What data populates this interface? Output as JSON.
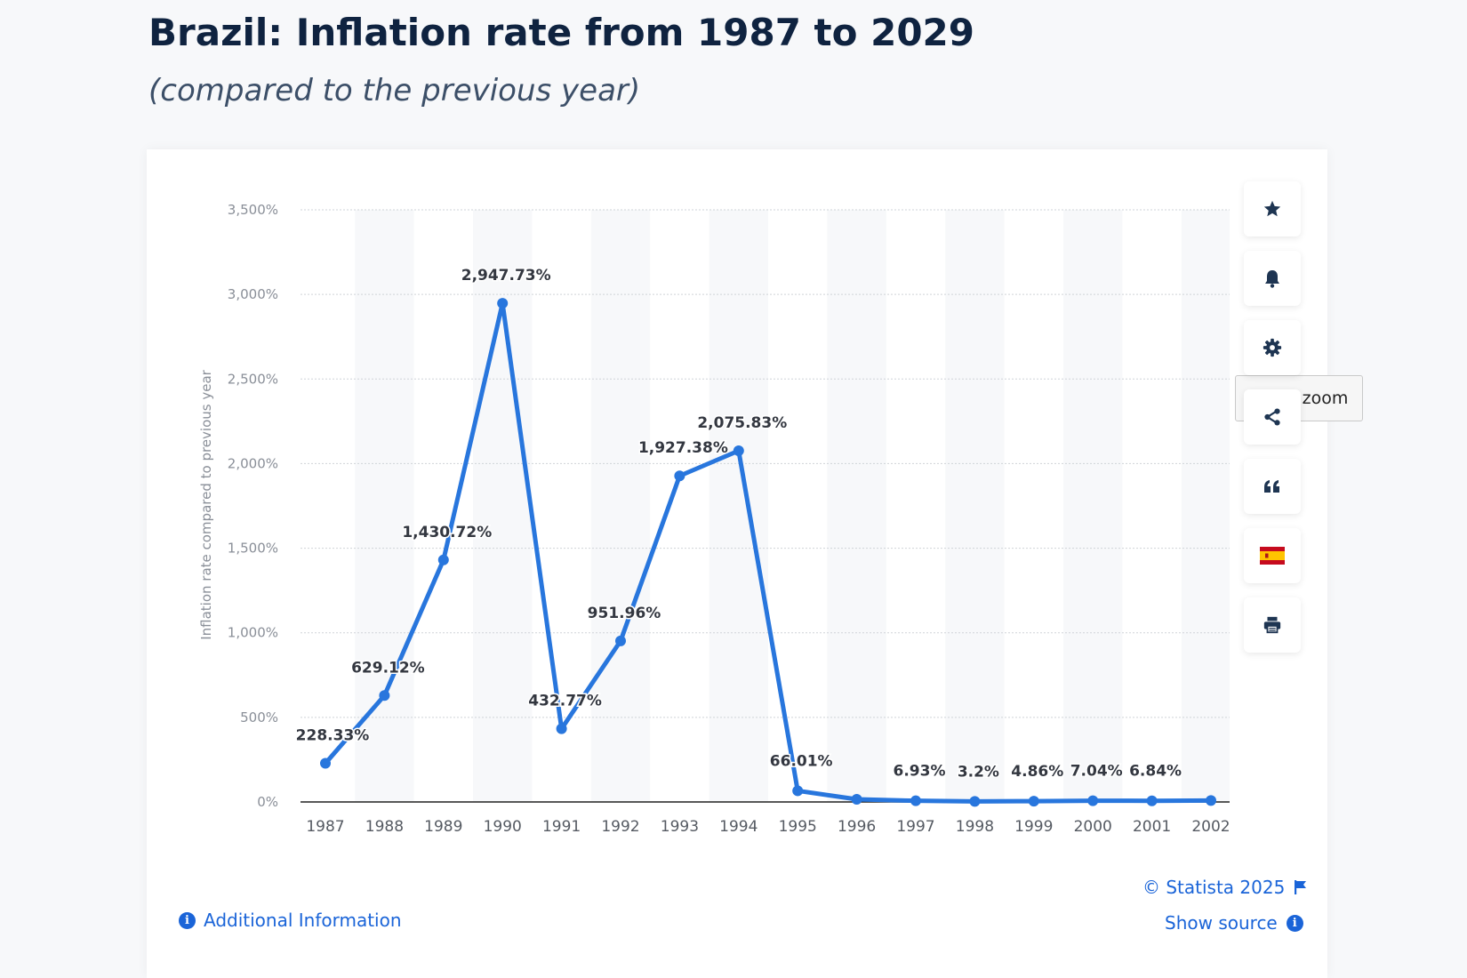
{
  "header": {
    "title": "Brazil: Inflation rate from 1987 to 2029",
    "subtitle": "(compared to the previous year)"
  },
  "chart_data": {
    "type": "line",
    "ylabel": "Inflation rate compared to previous year",
    "xlabel": "",
    "ylim": [
      0,
      3500
    ],
    "yticks": [
      0,
      500,
      1000,
      1500,
      2000,
      2500,
      3000,
      3500
    ],
    "ytick_labels": [
      "0%",
      "500%",
      "1,000%",
      "1,500%",
      "2,000%",
      "2,500%",
      "3,000%",
      "3,500%"
    ],
    "categories": [
      "1987",
      "1988",
      "1989",
      "1990",
      "1991",
      "1992",
      "1993",
      "1994",
      "1995",
      "1996",
      "1997",
      "1998",
      "1999",
      "2000",
      "2001",
      "2002"
    ],
    "values": [
      228.33,
      629.12,
      1430.72,
      2947.73,
      432.77,
      951.96,
      1927.38,
      2075.83,
      66.01,
      15.76,
      6.93,
      3.2,
      4.86,
      7.04,
      6.84,
      8.45
    ],
    "point_labels": [
      "228.33%",
      "629.12%",
      "1,430.72%",
      "2,947.73%",
      "432.77%",
      "951.96%",
      "1,927.38%",
      "2,075.83%",
      "66.01%",
      "",
      "6.93%",
      "3.2%",
      "4.86%",
      "7.04%",
      "6.84%",
      ""
    ],
    "line_color": "#2876dd",
    "grid": true
  },
  "controls": {
    "reset_zoom": "Reset zoom"
  },
  "toolbar": {
    "icons": [
      "star-icon",
      "bell-icon",
      "gear-icon",
      "share-icon",
      "quote-icon",
      "spain-flag-icon",
      "print-icon"
    ]
  },
  "footer": {
    "additional_info": "Additional Information",
    "copyright": "© Statista 2025",
    "show_source": "Show source"
  }
}
